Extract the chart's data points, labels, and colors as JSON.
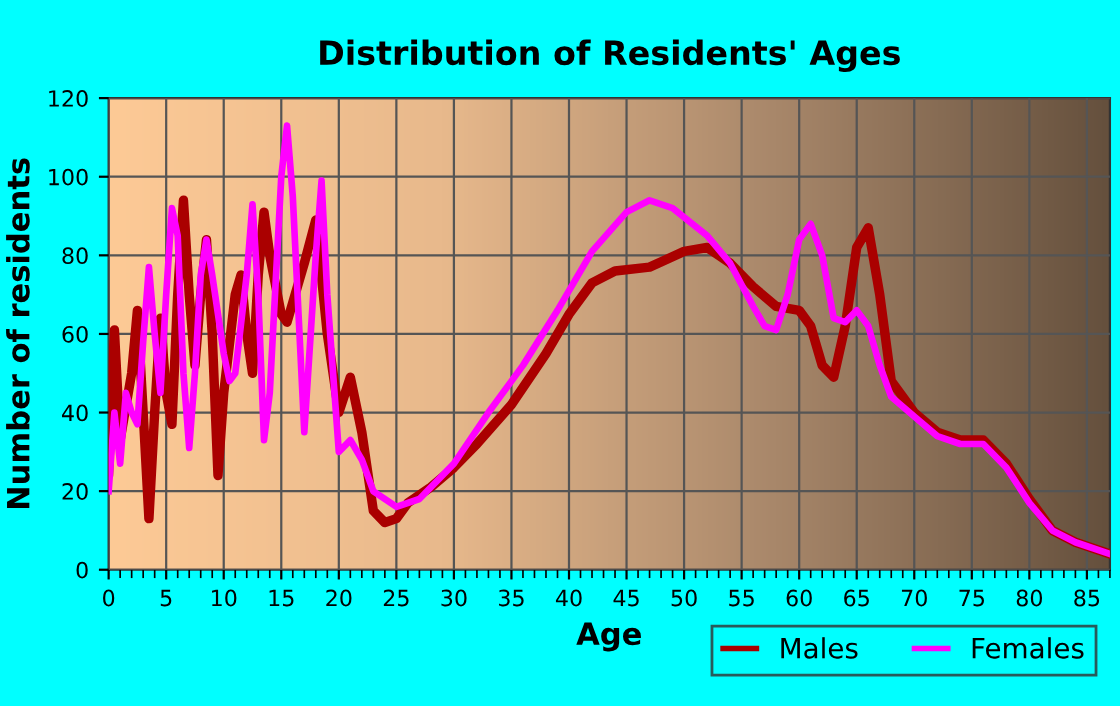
{
  "chart_data": {
    "type": "line",
    "title": "Distribution of Residents' Ages",
    "xlabel": "Age",
    "ylabel": "Number of residents",
    "xlim": [
      0,
      87
    ],
    "ylim": [
      0,
      120
    ],
    "xticks": [
      0,
      5,
      10,
      15,
      20,
      25,
      30,
      35,
      40,
      45,
      50,
      55,
      60,
      65,
      70,
      75,
      80,
      85
    ],
    "yticks": [
      0,
      20,
      40,
      60,
      80,
      100,
      120
    ],
    "grid": true,
    "legend": "bottom right",
    "marker": "none",
    "line_style": "solid",
    "series": [
      {
        "name": "Males",
        "color": "#aa0000",
        "x": [
          0,
          0.5,
          1,
          2,
          2.5,
          3,
          3.5,
          4,
          4.5,
          5,
          5.5,
          6,
          6.5,
          7,
          7.5,
          8,
          8.5,
          9,
          9.5,
          10,
          11,
          11.5,
          12,
          12.5,
          13,
          13.5,
          14,
          15,
          15.5,
          16,
          17,
          18,
          19,
          20,
          21,
          22,
          23,
          24,
          25,
          26,
          28,
          30,
          32,
          35,
          38,
          40,
          42,
          44,
          47,
          50,
          52,
          54,
          56,
          58,
          60,
          61,
          62,
          63,
          64,
          65,
          66,
          67,
          68,
          70,
          72,
          74,
          76,
          78,
          80,
          82,
          84,
          87
        ],
        "values": [
          25,
          61,
          33,
          50,
          66,
          40,
          13,
          40,
          64,
          45,
          37,
          70,
          94,
          70,
          52,
          70,
          84,
          60,
          24,
          45,
          70,
          75,
          60,
          50,
          75,
          91,
          80,
          65,
          63,
          68,
          78,
          89,
          60,
          40,
          49,
          35,
          15,
          12,
          13,
          17,
          21,
          26,
          32,
          42,
          55,
          65,
          73,
          76,
          77,
          81,
          82,
          78,
          72,
          67,
          66,
          62,
          52,
          49,
          62,
          82,
          87,
          70,
          48,
          40,
          35,
          33,
          33,
          27,
          18,
          10,
          7,
          4
        ]
      },
      {
        "name": "Females",
        "color": "#ff00ff",
        "x": [
          0,
          0.5,
          1,
          1.5,
          2,
          2.5,
          3,
          3.5,
          4,
          4.5,
          5,
          5.5,
          6,
          6.5,
          7,
          7.5,
          8,
          8.5,
          9,
          10,
          10.5,
          11,
          12,
          12.5,
          13,
          13.5,
          14,
          15,
          15.5,
          16,
          17,
          18,
          18.5,
          19,
          20,
          21,
          22,
          23,
          25,
          27,
          30,
          33,
          36,
          39,
          42,
          45,
          47,
          49,
          52,
          54,
          56,
          57,
          58,
          59,
          60,
          61,
          62,
          63,
          64,
          65,
          66,
          67,
          68,
          70,
          72,
          74,
          76,
          78,
          80,
          82,
          84,
          87
        ],
        "values": [
          20,
          40,
          27,
          45,
          40,
          37,
          58,
          77,
          60,
          45,
          70,
          92,
          85,
          50,
          31,
          50,
          75,
          84,
          75,
          55,
          48,
          50,
          75,
          93,
          70,
          33,
          45,
          100,
          113,
          95,
          35,
          80,
          99,
          70,
          30,
          33,
          28,
          20,
          16,
          18,
          27,
          40,
          52,
          66,
          81,
          91,
          94,
          92,
          85,
          78,
          67,
          62,
          61,
          70,
          84,
          88,
          80,
          64,
          63,
          66,
          62,
          52,
          44,
          39,
          34,
          32,
          32,
          26,
          17,
          10,
          7,
          4
        ]
      }
    ]
  }
}
